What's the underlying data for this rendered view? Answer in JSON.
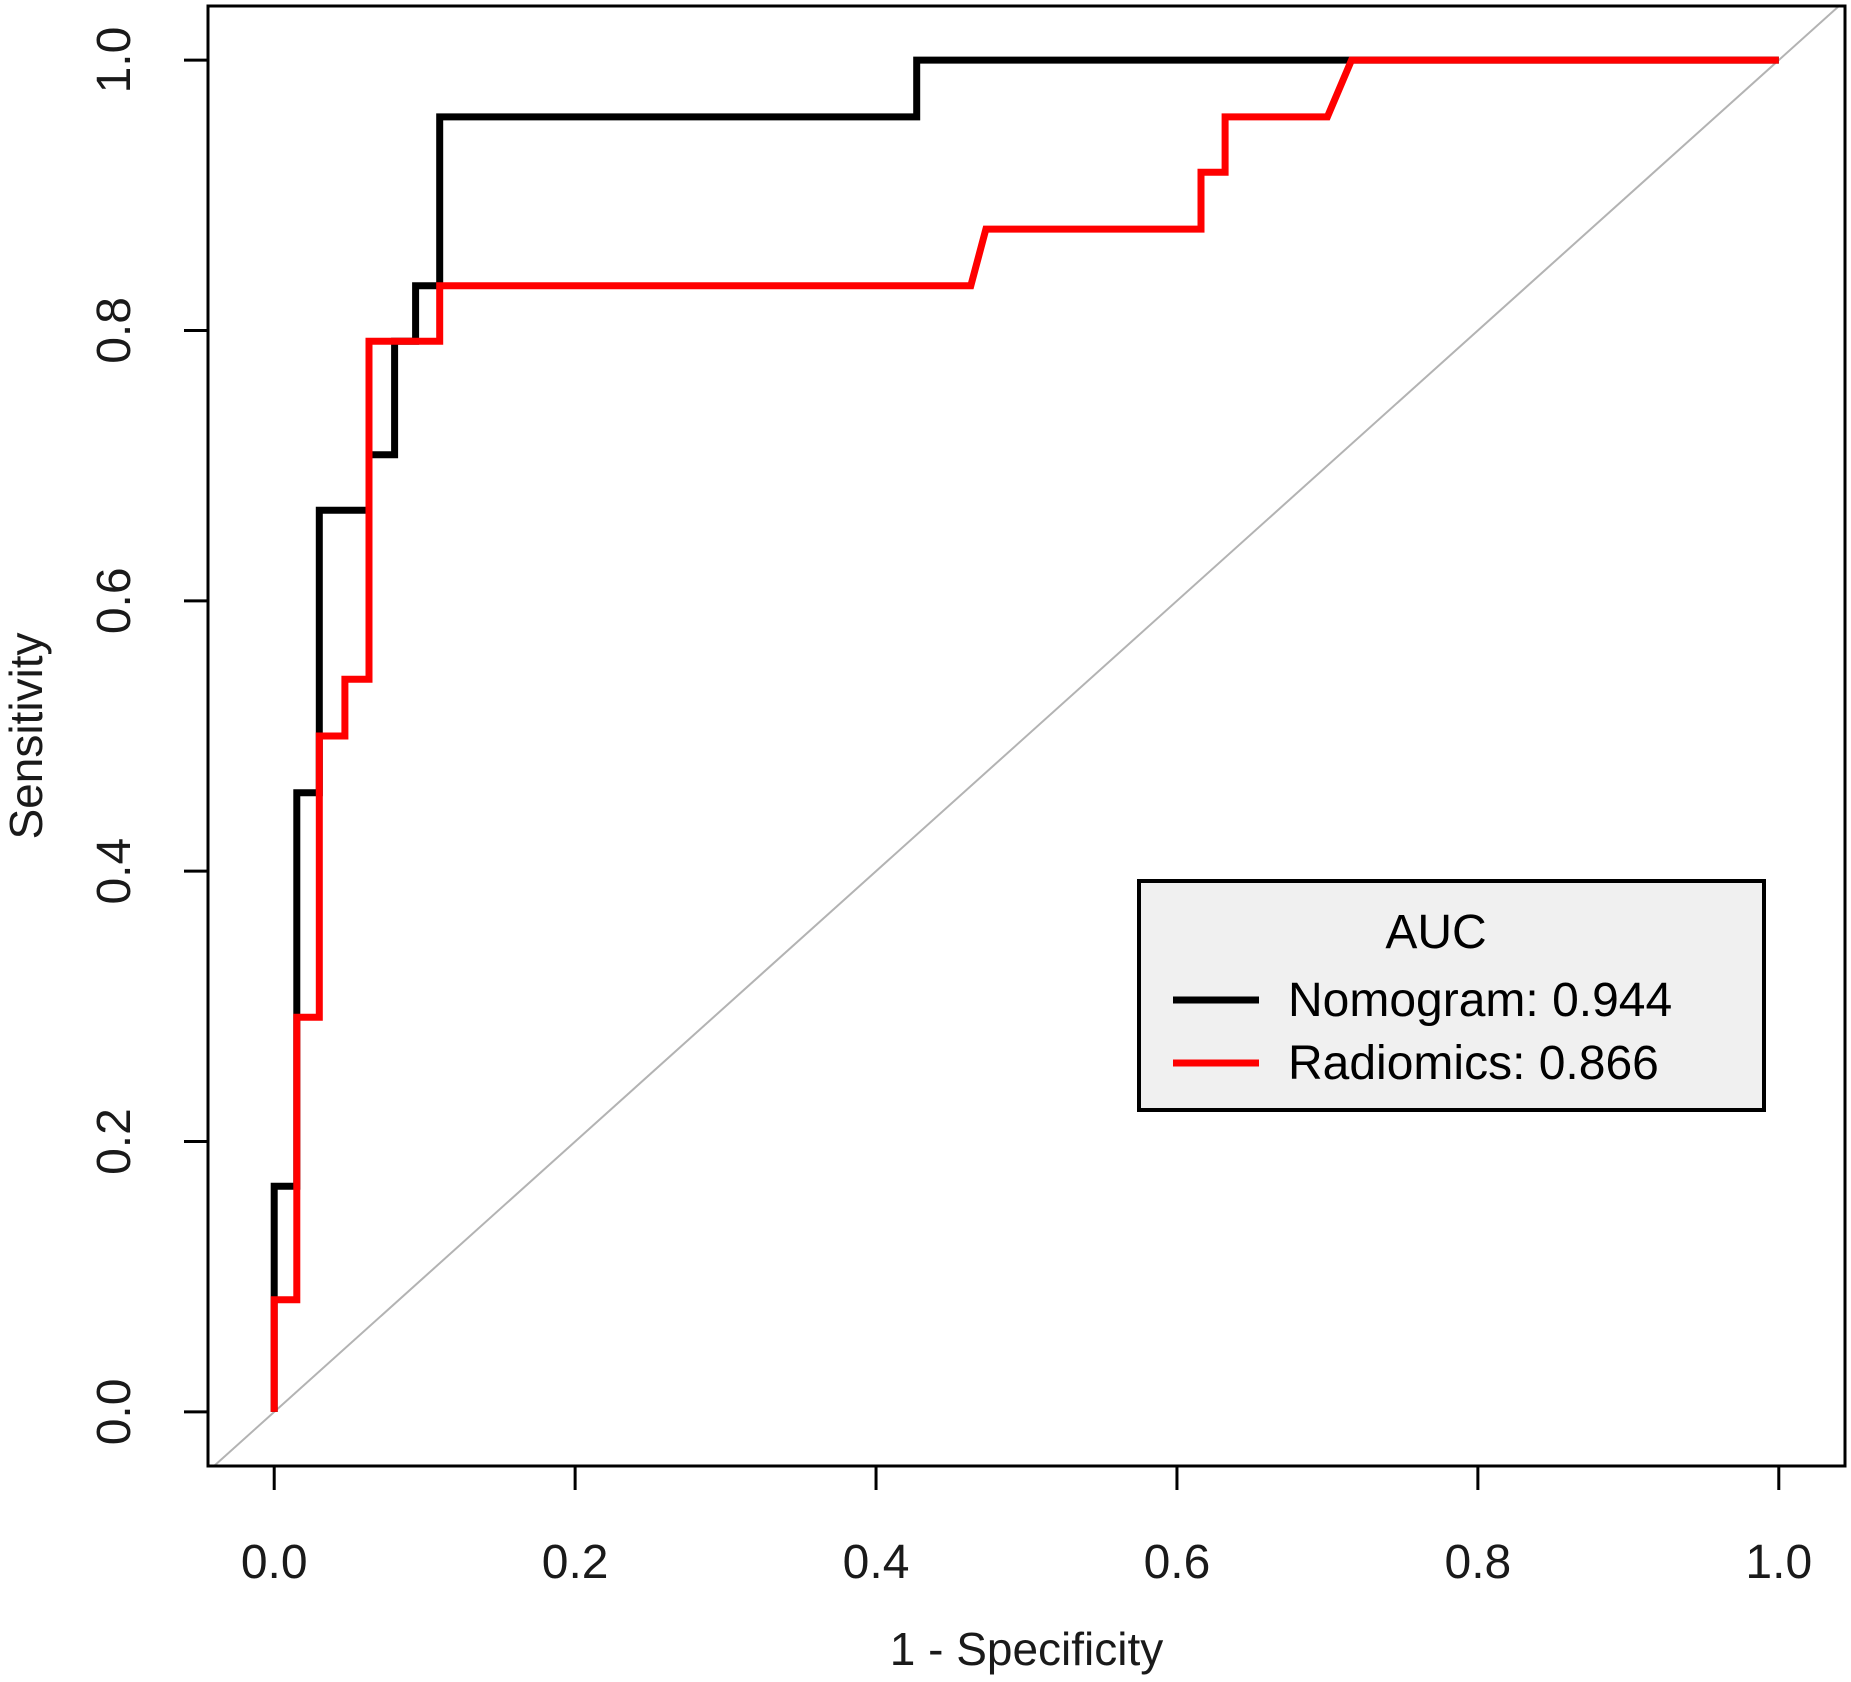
{
  "chart_data": {
    "type": "line",
    "title": "",
    "xlabel": "1 - Specificity",
    "ylabel": "Sensitivity",
    "xlim": [
      -0.044,
      1.044
    ],
    "ylim": [
      -0.04,
      1.04
    ],
    "x_ticks": [
      0.0,
      0.2,
      0.4,
      0.6,
      0.8,
      1.0
    ],
    "x_tick_labels": [
      "0.0",
      "0.2",
      "0.4",
      "0.6",
      "0.8",
      "1.0"
    ],
    "y_ticks": [
      0.0,
      0.2,
      0.4,
      0.6,
      0.8,
      1.0
    ],
    "y_tick_labels": [
      "0.0",
      "0.2",
      "0.4",
      "0.6",
      "0.8",
      "1.0"
    ],
    "grid": false,
    "reference_line": {
      "from": [
        0,
        0
      ],
      "to": [
        1,
        1
      ],
      "color": "#b3b3b3"
    },
    "legend": {
      "title": "AUC",
      "placement": "right-center"
    },
    "series": [
      {
        "name": "Nomogram",
        "label": "Nomogram: 0.944",
        "auc": 0.944,
        "color": "#000000",
        "x": [
          0,
          0,
          0,
          0.015,
          0.015,
          0.03,
          0.03,
          0.063,
          0.063,
          0.08,
          0.08,
          0.094,
          0.094,
          0.11,
          0.11,
          0.427,
          0.427,
          1.0
        ],
        "y": [
          0,
          0.083,
          0.167,
          0.167,
          0.458,
          0.458,
          0.667,
          0.667,
          0.708,
          0.708,
          0.792,
          0.792,
          0.833,
          0.833,
          0.958,
          0.958,
          1.0,
          1.0
        ]
      },
      {
        "name": "Radiomics",
        "label": "Radiomics: 0.866",
        "auc": 0.866,
        "color": "#ff0000",
        "x": [
          0,
          0,
          0.015,
          0.015,
          0.03,
          0.03,
          0.047,
          0.047,
          0.063,
          0.063,
          0.11,
          0.11,
          0.463,
          0.473,
          0.616,
          0.616,
          0.632,
          0.632,
          0.7,
          0.716,
          1.0
        ],
        "y": [
          0,
          0.083,
          0.083,
          0.292,
          0.292,
          0.5,
          0.5,
          0.542,
          0.542,
          0.792,
          0.792,
          0.833,
          0.833,
          0.875,
          0.875,
          0.917,
          0.917,
          0.958,
          0.958,
          1.0,
          1.0
        ]
      }
    ]
  }
}
